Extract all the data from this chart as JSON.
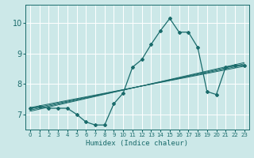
{
  "title": "",
  "xlabel": "Humidex (Indice chaleur)",
  "ylabel": "",
  "bg_color": "#cce8e8",
  "grid_color": "#ffffff",
  "line_color": "#1a6b6b",
  "x_ticks": [
    0,
    1,
    2,
    3,
    4,
    5,
    6,
    7,
    8,
    9,
    10,
    11,
    12,
    13,
    14,
    15,
    16,
    17,
    18,
    19,
    20,
    21,
    22,
    23
  ],
  "y_ticks": [
    7,
    8,
    9,
    10
  ],
  "ylim": [
    6.5,
    10.6
  ],
  "xlim": [
    -0.5,
    23.5
  ],
  "main_curve_x": [
    0,
    1,
    2,
    3,
    4,
    5,
    6,
    7,
    8,
    9,
    10,
    11,
    12,
    13,
    14,
    15,
    16,
    17,
    18,
    19,
    20,
    21,
    22,
    23
  ],
  "main_curve_y": [
    7.2,
    7.25,
    7.2,
    7.2,
    7.2,
    7.0,
    6.75,
    6.65,
    6.65,
    7.35,
    7.7,
    8.55,
    8.8,
    9.3,
    9.75,
    10.15,
    9.7,
    9.7,
    9.2,
    7.75,
    7.65,
    8.55,
    8.6,
    8.6
  ],
  "line1_y_start": 7.18,
  "line1_y_end": 8.62,
  "line2_y_start": 7.14,
  "line2_y_end": 8.66,
  "line3_y_start": 7.1,
  "line3_y_end": 8.7,
  "line4_y_start": 7.22,
  "line4_y_end": 8.58,
  "xlabel_fontsize": 6.5,
  "ytick_fontsize": 7,
  "xtick_fontsize": 5.0
}
